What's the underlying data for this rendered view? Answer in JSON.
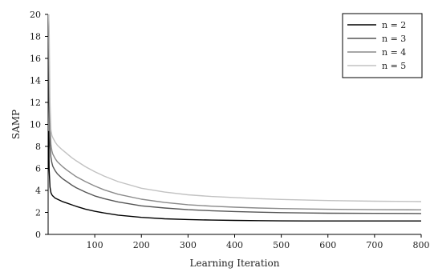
{
  "chart_data": {
    "type": "line",
    "title": "",
    "xlabel": "Learning Iteration",
    "ylabel": "SAMP",
    "xlim": [
      0,
      800
    ],
    "ylim": [
      0,
      20
    ],
    "xticks": [
      100,
      200,
      300,
      400,
      500,
      600,
      700,
      800
    ],
    "yticks": [
      0,
      2,
      4,
      6,
      8,
      10,
      12,
      14,
      16,
      18,
      20
    ],
    "grid": false,
    "legend": "top-right",
    "series": [
      {
        "name": "n = 2",
        "color": "#000000",
        "x": [
          1,
          2,
          4,
          6,
          8,
          10,
          15,
          20,
          30,
          40,
          50,
          60,
          80,
          100,
          120,
          150,
          200,
          250,
          300,
          350,
          400,
          450,
          500,
          600,
          700,
          800
        ],
        "y": [
          9.4,
          6.0,
          4.3,
          3.8,
          3.6,
          3.5,
          3.3,
          3.2,
          3.0,
          2.85,
          2.7,
          2.55,
          2.3,
          2.1,
          1.95,
          1.75,
          1.55,
          1.42,
          1.35,
          1.3,
          1.27,
          1.25,
          1.23,
          1.22,
          1.22,
          1.22
        ]
      },
      {
        "name": "n = 3",
        "color": "#555555",
        "x": [
          1,
          2,
          4,
          6,
          8,
          10,
          15,
          20,
          30,
          40,
          50,
          60,
          80,
          100,
          120,
          150,
          200,
          250,
          300,
          350,
          400,
          450,
          500,
          600,
          700,
          800
        ],
        "y": [
          18.0,
          12.0,
          8.0,
          7.0,
          6.5,
          6.2,
          5.8,
          5.5,
          5.1,
          4.8,
          4.5,
          4.25,
          3.85,
          3.5,
          3.25,
          2.95,
          2.6,
          2.4,
          2.25,
          2.15,
          2.08,
          2.02,
          1.98,
          1.93,
          1.91,
          1.9
        ]
      },
      {
        "name": "n = 4",
        "color": "#8a8a8a",
        "x": [
          1,
          2,
          4,
          6,
          8,
          10,
          15,
          20,
          30,
          40,
          50,
          60,
          80,
          100,
          120,
          150,
          200,
          250,
          300,
          350,
          400,
          450,
          500,
          600,
          700,
          800
        ],
        "y": [
          20.0,
          16.0,
          10.0,
          8.2,
          7.6,
          7.3,
          6.9,
          6.6,
          6.2,
          5.85,
          5.55,
          5.25,
          4.8,
          4.4,
          4.05,
          3.65,
          3.2,
          2.9,
          2.7,
          2.57,
          2.47,
          2.4,
          2.35,
          2.28,
          2.25,
          2.23
        ]
      },
      {
        "name": "n = 5",
        "color": "#c2c2c2",
        "x": [
          1,
          2,
          4,
          6,
          8,
          10,
          15,
          20,
          30,
          40,
          50,
          60,
          80,
          100,
          120,
          150,
          200,
          250,
          300,
          350,
          400,
          450,
          500,
          600,
          700,
          800
        ],
        "y": [
          20.0,
          19.0,
          12.0,
          9.5,
          9.0,
          8.8,
          8.4,
          8.1,
          7.7,
          7.35,
          7.0,
          6.7,
          6.15,
          5.7,
          5.3,
          4.8,
          4.2,
          3.85,
          3.6,
          3.45,
          3.35,
          3.25,
          3.18,
          3.08,
          3.02,
          2.98
        ]
      }
    ]
  }
}
